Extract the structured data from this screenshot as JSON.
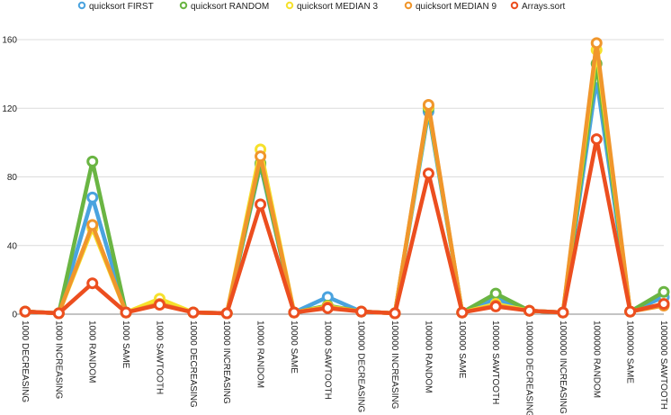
{
  "chart_data": {
    "type": "line",
    "title": "",
    "xlabel": "",
    "ylabel": "",
    "ylim": [
      0,
      160
    ],
    "yticks": [
      0,
      40,
      80,
      120,
      160
    ],
    "grid": "horizontal",
    "legend_position": "top",
    "categories": [
      "1000 DECREASING",
      "1000 INCREASING",
      "1000 RANDOM",
      "1000 SAME",
      "1000 SAWTOOTH",
      "10000 DECREASING",
      "10000 INCREASING",
      "10000 RANDOM",
      "10000 SAME",
      "10000 SAWTOOTH",
      "100000 DECREASING",
      "100000 INCREASING",
      "100000 RANDOM",
      "100000 SAME",
      "100000 SAWTOOTH",
      "1000000 DECREASING",
      "1000000 INCREASING",
      "1000000 RANDOM",
      "1000000 SAME",
      "1000000 SAWTOOTH"
    ],
    "series": [
      {
        "name": "quicksort FIRST",
        "color": "#4aa3df",
        "values": [
          1.5,
          0.5,
          68,
          1,
          7.5,
          1,
          0.5,
          87,
          1,
          10,
          1.5,
          0.5,
          118,
          1,
          9,
          2,
          1,
          137,
          1.5,
          10
        ]
      },
      {
        "name": "quicksort RANDOM",
        "color": "#6ab543",
        "values": [
          1.5,
          0.5,
          89,
          1,
          6.5,
          1,
          0.5,
          88,
          1,
          5,
          1.5,
          0.5,
          120,
          1,
          12,
          2,
          1,
          146,
          1.5,
          13
        ]
      },
      {
        "name": "quicksort MEDIAN 3",
        "color": "#f6e12c",
        "values": [
          1.5,
          0.5,
          50,
          1,
          9,
          1,
          0.5,
          96,
          1,
          4.5,
          1.5,
          0.5,
          121,
          1,
          6,
          2,
          1,
          154,
          1.5,
          6
        ]
      },
      {
        "name": "quicksort MEDIAN 9",
        "color": "#f0962c",
        "values": [
          1.5,
          0.5,
          52,
          1,
          6,
          1,
          0.5,
          92,
          1,
          4,
          1.5,
          0.5,
          122,
          1,
          5,
          2,
          1,
          158,
          1.5,
          5
        ]
      },
      {
        "name": "Arrays.sort",
        "color": "#ec4e1f",
        "values": [
          1.5,
          0.5,
          18,
          1,
          5.5,
          1,
          0.5,
          64,
          1,
          3.5,
          1.5,
          0.5,
          82,
          1,
          4.5,
          2,
          1,
          102,
          1.5,
          6
        ]
      }
    ]
  }
}
